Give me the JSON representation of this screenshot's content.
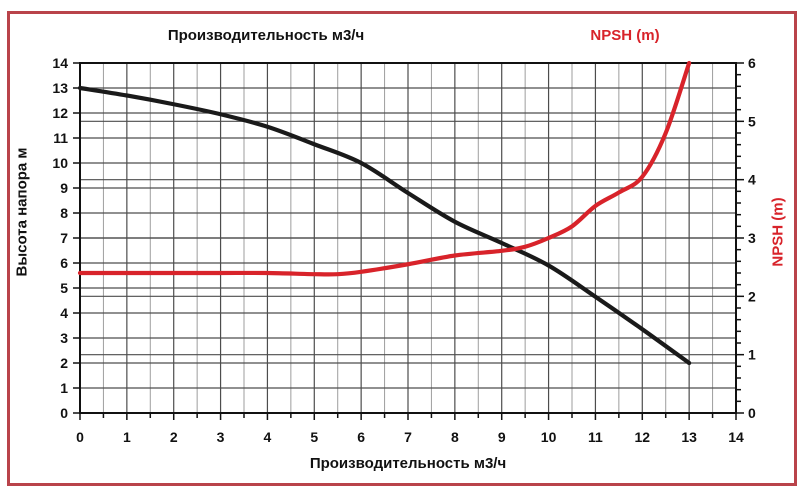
{
  "frame": {
    "border_color": "#b9434a"
  },
  "chart_data": {
    "type": "line",
    "title_top": "Производительность м3/ч",
    "title_top_right": "NPSH (m)",
    "xlabel": "Производительность м3/ч",
    "ylabel_left": "Высота напора м",
    "ylabel_right": "NPSH (m)",
    "x_axis": {
      "min": 0,
      "max": 14,
      "major_step": 1,
      "minor_step": 0.5
    },
    "y_left_axis": {
      "min": 0,
      "max": 14,
      "major_step": 1
    },
    "y_right_axis": {
      "min": 0,
      "max": 6,
      "major_step": 1,
      "minor_step": 0.2
    },
    "grid": {
      "major_color": "#4d4d4d",
      "minor_color": "#9e9e9e",
      "spine_color": "#111111"
    },
    "series": [
      {
        "name": "Высота напора (напор)",
        "axis": "left",
        "color": "#1a1a1a",
        "points": [
          [
            0,
            13.0
          ],
          [
            1,
            12.7
          ],
          [
            2,
            12.35
          ],
          [
            3,
            11.95
          ],
          [
            4,
            11.45
          ],
          [
            5,
            10.75
          ],
          [
            6,
            10.0
          ],
          [
            7,
            8.8
          ],
          [
            8,
            7.65
          ],
          [
            9,
            6.8
          ],
          [
            10,
            5.9
          ],
          [
            11,
            4.65
          ],
          [
            12,
            3.35
          ],
          [
            13,
            2.0
          ]
        ]
      },
      {
        "name": "NPSH (m)",
        "axis": "right",
        "color": "#d8232a",
        "points": [
          [
            0,
            2.4
          ],
          [
            1,
            2.4
          ],
          [
            2,
            2.4
          ],
          [
            3,
            2.4
          ],
          [
            4,
            2.4
          ],
          [
            5,
            2.38
          ],
          [
            5.5,
            2.38
          ],
          [
            6,
            2.42
          ],
          [
            7,
            2.55
          ],
          [
            8,
            2.7
          ],
          [
            9,
            2.78
          ],
          [
            9.5,
            2.85
          ],
          [
            10,
            3.0
          ],
          [
            10.5,
            3.2
          ],
          [
            11,
            3.55
          ],
          [
            11.5,
            3.78
          ],
          [
            12,
            4.05
          ],
          [
            12.5,
            4.8
          ],
          [
            13,
            6.0
          ]
        ]
      }
    ]
  }
}
